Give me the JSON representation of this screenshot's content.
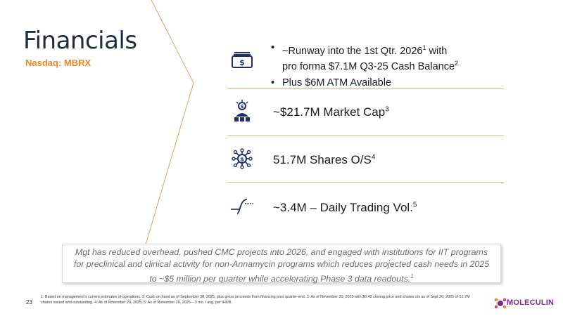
{
  "header": {
    "title": "Financials",
    "ticker": "Nasdaq: MBRX"
  },
  "rows": {
    "runway": {
      "icon": "cash-icon",
      "bullet1_line1": "~Runway into the 1st Qtr. 2026",
      "bullet1_sup1": "1",
      "bullet1_line1_end": " with",
      "bullet1_line2": "pro forma $7.1M Q3-25 Cash Balance",
      "bullet1_sup2": "2",
      "bullet2": "Plus $6M ATM Available"
    },
    "market_cap": {
      "icon": "investor-icon",
      "label": "~$21.7M Market Cap",
      "sup": "3"
    },
    "shares": {
      "icon": "shares-network-icon",
      "label": "51.7M Shares O/S",
      "sup": "4"
    },
    "volume": {
      "icon": "trading-curve-icon",
      "label": "~3.4M – Daily Trading Vol.",
      "sup": "5"
    }
  },
  "callout": {
    "text": "Mgt has reduced overhead, pushed CMC projects into 2026, and engaged with institutions for IIT programs for preclinical and clinical activity for non-Annamycin programs which reduces projected cash needs in 2025 to ~$5 million per quarter while accelerating Phase 3 data readouts.",
    "sup": "1"
  },
  "footer": {
    "page_number": "23",
    "footnotes": "1: Based on management's current estimates of operations. 2: Cash on hand as of  September 30, 2025, plus gross proceeds from financing post quarter-end. 3: As of November 20, 2025 with $0.42 closing price and shares o/s as of Sept 20, 2025 of  51.7M shares issued and outstanding. 4: As of November 20, 2025; 5. As of November 20, 2025 – 3 mo. l avg. per IHUB.",
    "logo_text": "MOLECULIN"
  },
  "colors": {
    "accent": "#e8872b",
    "navy": "#1f2a44",
    "icon": "#1f2f6b",
    "brand": "#7a2a8a"
  }
}
